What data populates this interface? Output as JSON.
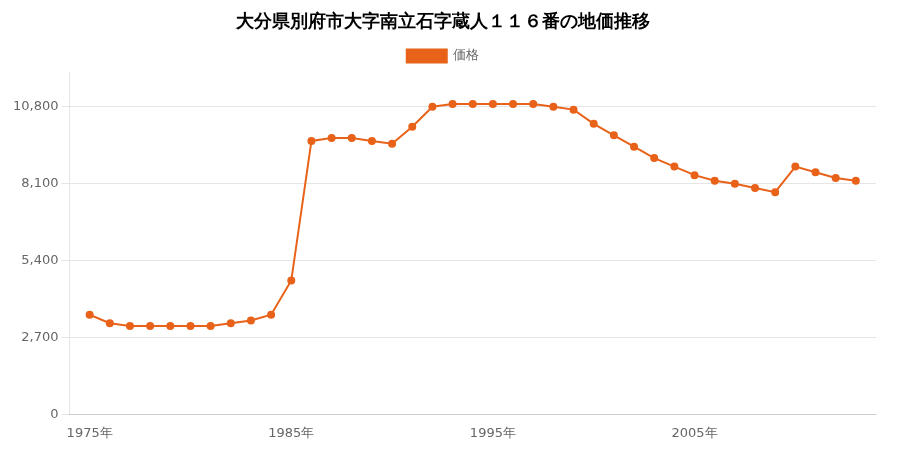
{
  "chart_data": {
    "type": "line",
    "title": "大分県別府市大字南立石字蔵人１１６番の地価推移",
    "x": [
      1975,
      1976,
      1977,
      1978,
      1979,
      1980,
      1981,
      1982,
      1983,
      1984,
      1985,
      1986,
      1987,
      1988,
      1989,
      1990,
      1991,
      1992,
      1993,
      1994,
      1995,
      1996,
      1997,
      1998,
      1999,
      2000,
      2001,
      2002,
      2003,
      2004,
      2005,
      2006,
      2007,
      2008,
      2009,
      2010,
      2011,
      2012,
      2013
    ],
    "series": [
      {
        "name": "価格",
        "color": "#e8621a",
        "marker": "circle",
        "values": [
          3500,
          3200,
          3100,
          3100,
          3100,
          3100,
          3100,
          3200,
          3300,
          3500,
          4700,
          9600,
          9700,
          9700,
          9600,
          9500,
          10100,
          10800,
          10900,
          10900,
          10900,
          10900,
          10900,
          10800,
          10700,
          10200,
          9800,
          9400,
          9000,
          8700,
          8400,
          8200,
          8100,
          7950,
          7800,
          8700,
          8500,
          8300,
          8200
        ]
      }
    ],
    "xlim": [
      1974,
      2014
    ],
    "xticks": [
      {
        "value": 1975,
        "label": "1975年"
      },
      {
        "value": 1985,
        "label": "1985年"
      },
      {
        "value": 1995,
        "label": "1995年"
      },
      {
        "value": 2005,
        "label": "2005年"
      }
    ],
    "ylim": [
      0,
      12000
    ],
    "yticks": [
      0,
      {
        "value": 2700,
        "label": "2,700"
      },
      {
        "value": 5400,
        "label": "5,400"
      },
      {
        "value": 8100,
        "label": "8,100"
      },
      {
        "value": 10800,
        "label": "10,800"
      }
    ],
    "grid": "y",
    "legend": "top"
  }
}
